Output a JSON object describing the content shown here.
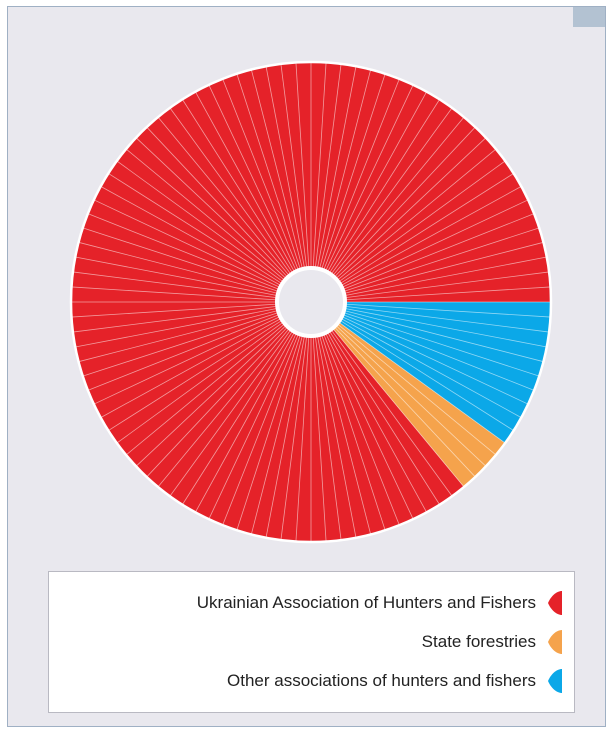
{
  "chart_data": {
    "type": "pie",
    "categories": [
      "Ukrainian Association of Hunters and Fishers",
      "State forestries",
      "Other associations of hunters and fishers"
    ],
    "values": [
      86,
      4,
      10
    ],
    "unit": "%",
    "colors": [
      "#e52229",
      "#f5a34c",
      "#0ba8e8"
    ],
    "legend_position": "bottom"
  },
  "legend": {
    "items": [
      {
        "label": "Ukrainian Association of Hunters and Fishers",
        "color": "#e52229"
      },
      {
        "label": "State forestries",
        "color": "#f5a34c"
      },
      {
        "label": "Other associations of hunters and fishers",
        "color": "#0ba8e8"
      }
    ]
  }
}
